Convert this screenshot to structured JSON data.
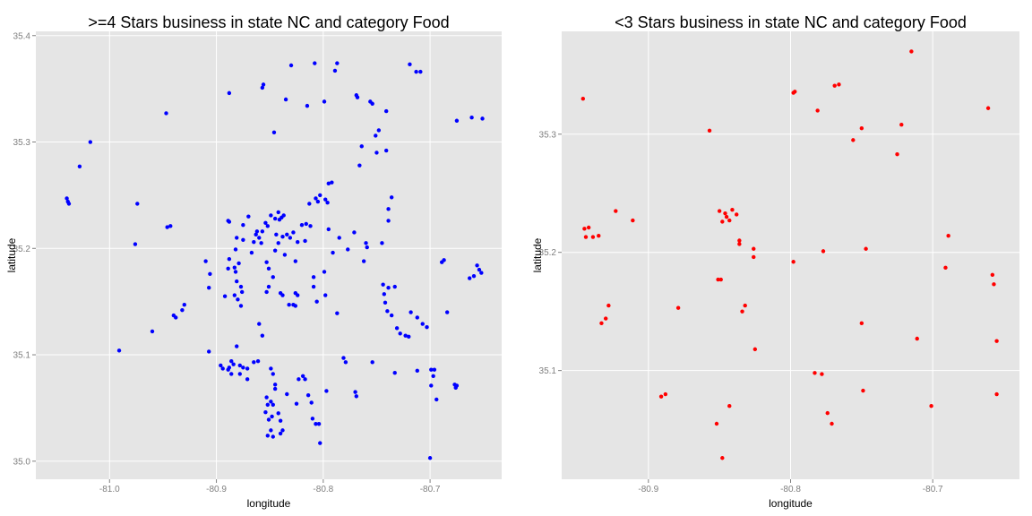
{
  "chart_data": [
    {
      "type": "scatter",
      "title": ">=4 Stars business in state NC and category Food",
      "x_label": "longitude",
      "y_label": "latitude",
      "color": "#0000ff",
      "grid": true,
      "xlim": [
        -81.069,
        -80.633
      ],
      "ylim": [
        34.983,
        35.404
      ],
      "xticks": [
        {
          "value": -81,
          "label": "-81.0"
        },
        -80.9,
        -80.8,
        -80.7
      ],
      "yticks": [
        {
          "value": 35,
          "label": "35.0"
        },
        35.1,
        35.2,
        35.3,
        35.4
      ],
      "x": [
        -81.04,
        -81.039,
        -81.038,
        -81.028,
        -81.018,
        -80.974,
        -80.976,
        -80.991,
        -80.96,
        -80.947,
        -80.946,
        -80.943,
        -80.94,
        -80.938,
        -80.932,
        -80.93,
        -80.91,
        -80.906,
        -80.907,
        -80.888,
        -80.889,
        -80.857,
        -80.856,
        -80.846,
        -80.835,
        -80.83,
        -80.815,
        -80.799,
        -80.789,
        -80.787,
        -80.808,
        -80.769,
        -80.768,
        -80.756,
        -80.754,
        -80.766,
        -80.764,
        -80.751,
        -80.748,
        -80.741,
        -80.75,
        -80.741,
        -80.719,
        -80.713,
        -80.709,
        -80.675,
        -80.661,
        -80.651,
        -80.656,
        -80.654,
        -80.652,
        -80.663,
        -80.659,
        -80.689,
        -80.687,
        -80.684,
        -80.718,
        -80.712,
        -80.707,
        -80.703,
        -80.723,
        -80.72,
        -80.731,
        -80.728,
        -80.736,
        -80.74,
        -80.742,
        -80.743,
        -80.739,
        -80.744,
        -80.733,
        -80.739,
        -80.739,
        -80.736,
        -80.745,
        -80.76,
        -80.759,
        -80.762,
        -80.771,
        -80.777,
        -80.785,
        -80.795,
        -80.798,
        -80.796,
        -80.803,
        -80.805,
        -80.807,
        -80.813,
        -80.812,
        -80.82,
        -80.816,
        -80.817,
        -80.795,
        -80.792,
        -80.791,
        -80.809,
        -80.809,
        -80.806,
        -80.798,
        -80.787,
        -80.799,
        -80.824,
        -80.831,
        -80.828,
        -80.834,
        -80.842,
        -80.838,
        -80.845,
        -80.836,
        -80.826,
        -80.844,
        -80.849,
        -80.845,
        -80.841,
        -80.837,
        -80.842,
        -80.839,
        -80.854,
        -80.852,
        -80.857,
        -80.863,
        -80.86,
        -80.865,
        -80.858,
        -80.862,
        -80.867,
        -80.875,
        -80.882,
        -80.879,
        -80.883,
        -80.882,
        -80.889,
        -80.888,
        -80.888,
        -80.87,
        -80.875,
        -80.881,
        -80.851,
        -80.853,
        -80.847,
        -80.851,
        -80.853,
        -80.84,
        -80.838,
        -80.826,
        -80.824,
        -80.832,
        -80.828,
        -80.826,
        -80.881,
        -80.877,
        -80.876,
        -80.877,
        -80.883,
        -80.88,
        -80.892,
        -80.907,
        -80.86,
        -80.857,
        -80.881,
        -80.865,
        -80.861,
        -80.871,
        -80.849,
        -80.847,
        -80.845,
        -80.845,
        -80.886,
        -80.884,
        -80.888,
        -80.889,
        -80.896,
        -80.894,
        -80.886,
        -80.878,
        -80.878,
        -80.875,
        -80.871,
        -80.853,
        -80.849,
        -80.852,
        -80.847,
        -80.854,
        -80.848,
        -80.851,
        -80.852,
        -80.847,
        -80.849,
        -80.84,
        -80.838,
        -80.84,
        -80.842,
        -80.834,
        -80.825,
        -80.819,
        -80.817,
        -80.814,
        -80.811,
        -80.81,
        -80.807,
        -80.804,
        -80.803,
        -80.823,
        -80.797,
        -80.781,
        -80.779,
        -80.77,
        -80.769,
        -80.754,
        -80.733,
        -80.7,
        -80.699,
        -80.696,
        -80.697,
        -80.699,
        -80.694,
        -80.676,
        -80.677,
        -80.675,
        -80.712
      ],
      "y": [
        35.247,
        35.244,
        35.242,
        35.277,
        35.3,
        35.242,
        35.204,
        35.104,
        35.122,
        35.327,
        35.22,
        35.221,
        35.137,
        35.135,
        35.142,
        35.147,
        35.188,
        35.176,
        35.103,
        35.346,
        35.226,
        35.351,
        35.354,
        35.309,
        35.34,
        35.372,
        35.334,
        35.338,
        35.367,
        35.374,
        35.374,
        35.344,
        35.342,
        35.338,
        35.336,
        35.278,
        35.296,
        35.306,
        35.311,
        35.329,
        35.29,
        35.292,
        35.373,
        35.366,
        35.366,
        35.32,
        35.323,
        35.322,
        35.184,
        35.18,
        35.177,
        35.172,
        35.174,
        35.187,
        35.189,
        35.14,
        35.14,
        35.135,
        35.129,
        35.126,
        35.118,
        35.117,
        35.125,
        35.12,
        35.137,
        35.141,
        35.149,
        35.157,
        35.163,
        35.166,
        35.164,
        35.237,
        35.226,
        35.248,
        35.205,
        35.205,
        35.201,
        35.188,
        35.215,
        35.199,
        35.21,
        35.218,
        35.246,
        35.243,
        35.25,
        35.244,
        35.247,
        35.242,
        35.221,
        35.222,
        35.223,
        35.207,
        35.261,
        35.262,
        35.196,
        35.173,
        35.164,
        35.15,
        35.156,
        35.139,
        35.178,
        35.206,
        35.21,
        35.215,
        35.213,
        35.205,
        35.211,
        35.198,
        35.194,
        35.188,
        35.213,
        35.231,
        35.228,
        35.227,
        35.231,
        35.234,
        35.229,
        35.224,
        35.221,
        35.216,
        35.213,
        35.21,
        35.206,
        35.205,
        35.216,
        35.196,
        35.208,
        35.199,
        35.186,
        35.182,
        35.178,
        35.181,
        35.19,
        35.225,
        35.23,
        35.222,
        35.21,
        35.181,
        35.187,
        35.173,
        35.164,
        35.159,
        35.158,
        35.156,
        35.158,
        35.156,
        35.147,
        35.147,
        35.146,
        35.169,
        35.164,
        35.159,
        35.146,
        35.156,
        35.152,
        35.155,
        35.163,
        35.129,
        35.118,
        35.108,
        35.093,
        35.094,
        35.087,
        35.087,
        35.082,
        35.072,
        35.068,
        35.094,
        35.091,
        35.088,
        35.086,
        35.09,
        35.087,
        35.082,
        35.082,
        35.09,
        35.088,
        35.077,
        35.06,
        35.056,
        35.053,
        35.053,
        35.046,
        35.042,
        35.039,
        35.024,
        35.023,
        35.029,
        35.026,
        35.029,
        35.038,
        35.045,
        35.063,
        35.054,
        35.08,
        35.077,
        35.062,
        35.055,
        35.04,
        35.035,
        35.035,
        35.017,
        35.077,
        35.066,
        35.097,
        35.093,
        35.065,
        35.061,
        35.093,
        35.083,
        35.003,
        35.086,
        35.086,
        35.08,
        35.071,
        35.058,
        35.069,
        35.072,
        35.071,
        35.085
      ]
    },
    {
      "type": "scatter",
      "title": "<3 Stars business in state NC and category Food",
      "x_label": "longitude",
      "y_label": "latitude",
      "color": "#ff0000",
      "grid": true,
      "xlim": [
        -80.961,
        -80.639
      ],
      "ylim": [
        35.008,
        35.387
      ],
      "xticks": [
        -80.9,
        -80.8,
        -80.7
      ],
      "yticks": [
        35.1,
        35.2,
        35.3
      ],
      "x": [
        -80.946,
        -80.715,
        -80.857,
        -80.798,
        -80.797,
        -80.769,
        -80.766,
        -80.781,
        -80.75,
        -80.722,
        -80.756,
        -80.725,
        -80.661,
        -80.923,
        -80.911,
        -80.945,
        -80.942,
        -80.944,
        -80.939,
        -80.935,
        -80.85,
        -80.846,
        -80.841,
        -80.838,
        -80.845,
        -80.848,
        -80.843,
        -80.836,
        -80.836,
        -80.826,
        -80.826,
        -80.798,
        -80.777,
        -80.747,
        -80.689,
        -80.691,
        -80.851,
        -80.849,
        -80.832,
        -80.834,
        -80.879,
        -80.928,
        -80.93,
        -80.933,
        -80.825,
        -80.75,
        -80.711,
        -80.658,
        -80.657,
        -80.655,
        -80.783,
        -80.778,
        -80.749,
        -80.888,
        -80.891,
        -80.655,
        -80.774,
        -80.771,
        -80.843,
        -80.701,
        -80.852,
        -80.848
      ],
      "y": [
        35.33,
        35.37,
        35.303,
        35.335,
        35.336,
        35.341,
        35.342,
        35.32,
        35.305,
        35.308,
        35.295,
        35.283,
        35.322,
        35.235,
        35.227,
        35.22,
        35.221,
        35.213,
        35.213,
        35.214,
        35.235,
        35.233,
        35.236,
        35.232,
        35.23,
        35.226,
        35.227,
        35.21,
        35.207,
        35.203,
        35.196,
        35.192,
        35.201,
        35.203,
        35.214,
        35.187,
        35.177,
        35.177,
        35.155,
        35.15,
        35.153,
        35.155,
        35.144,
        35.14,
        35.118,
        35.14,
        35.127,
        35.181,
        35.173,
        35.125,
        35.098,
        35.097,
        35.083,
        35.08,
        35.078,
        35.08,
        35.064,
        35.055,
        35.07,
        35.07,
        35.055,
        35.026
      ]
    }
  ]
}
